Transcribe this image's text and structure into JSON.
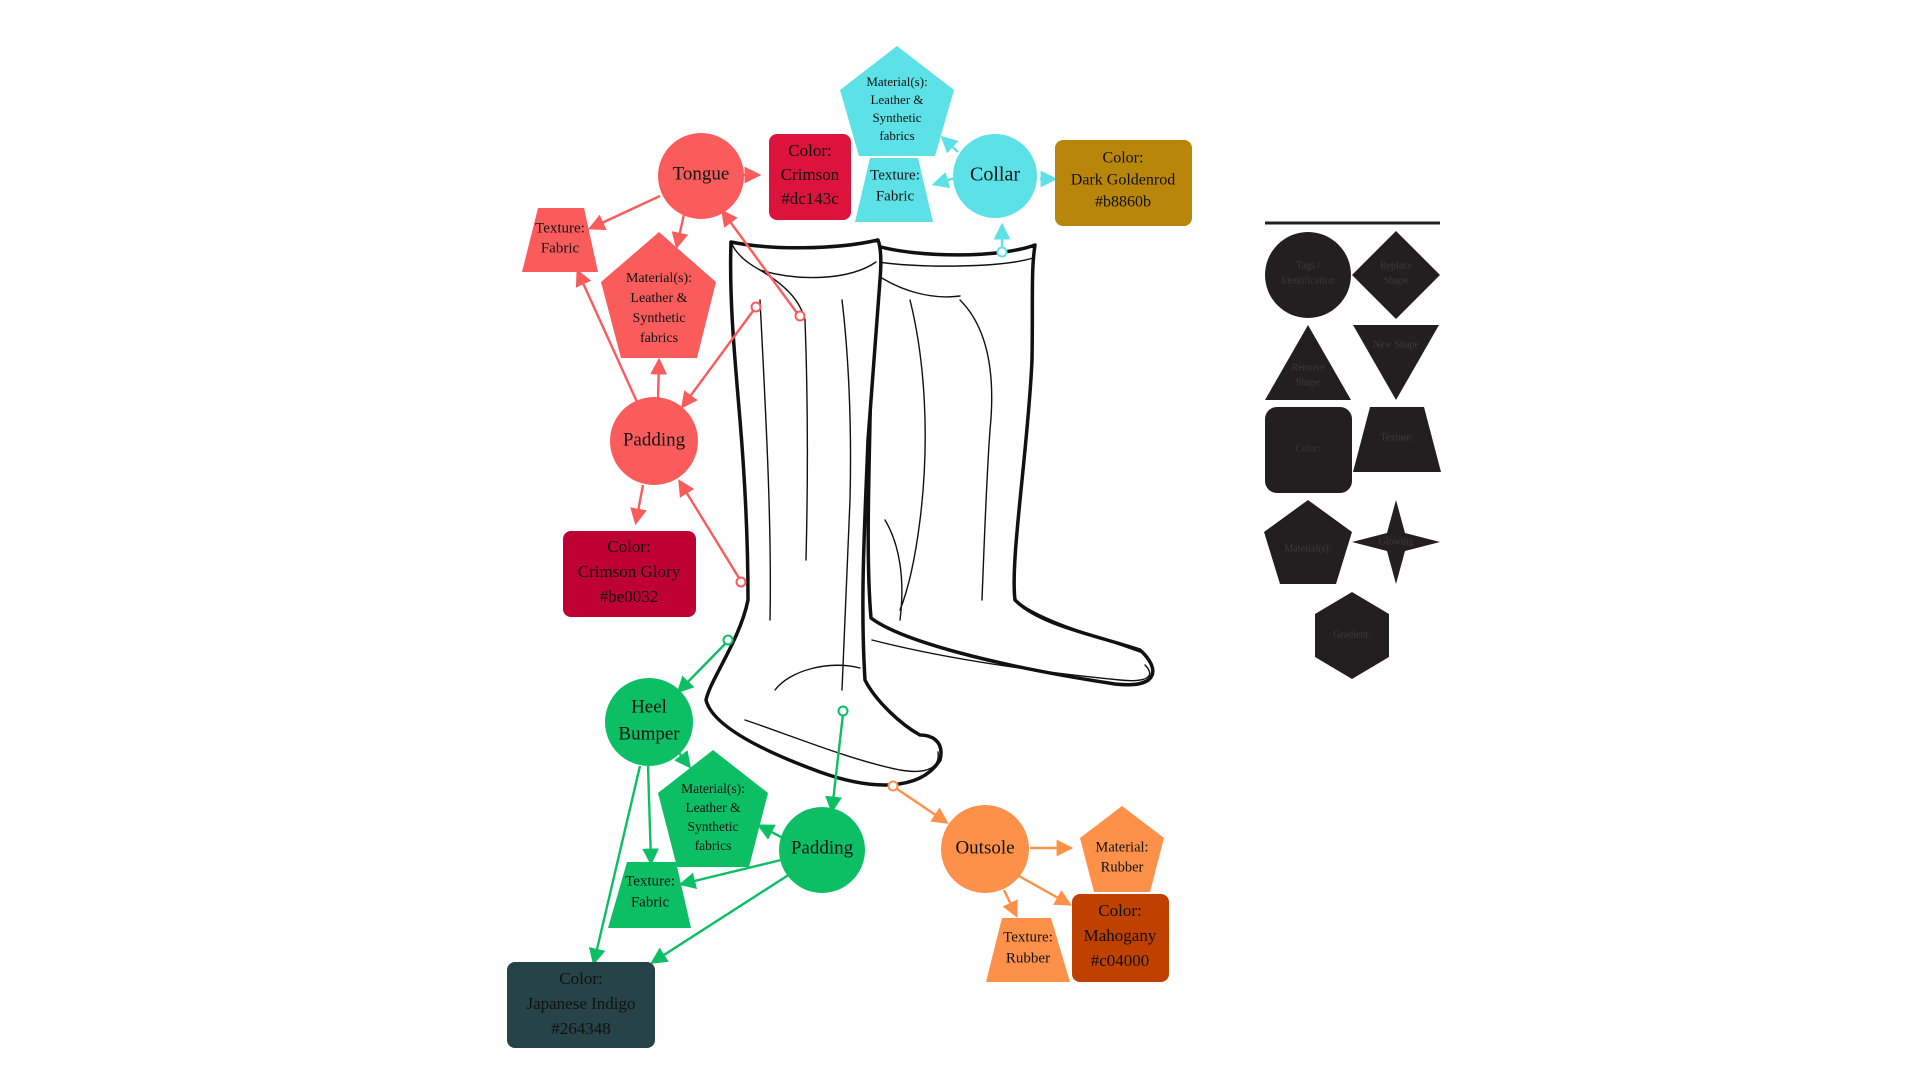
{
  "colors": {
    "tongue": "#fa5c5c",
    "collar": "#5ce1e6",
    "heel": "#0cbf65",
    "outsole": "#fd9149",
    "crimson": "#dc143c",
    "goldenrod": "#b8860b",
    "crimson_glory": "#be0032",
    "indigo": "#264348",
    "mahogany": "#c04000",
    "legend": "#231f20"
  },
  "nodes": {
    "tongue": "Tongue",
    "collar": "Collar",
    "padding_top": "Padding",
    "heel_bumper_1": "Heel",
    "heel_bumper_2": "Bumper",
    "padding_bottom": "Padding",
    "outsole": "Outsole"
  },
  "tags": {
    "tongue_texture": [
      "Texture:",
      "Fabric"
    ],
    "tongue_material": [
      "Material(s):",
      "Leather &",
      "Synthetic",
      "fabrics"
    ],
    "tongue_color": [
      "Color:",
      "Crimson",
      "#dc143c"
    ],
    "collar_material": [
      "Material(s):",
      "Leather &",
      "Synthetic",
      "fabrics"
    ],
    "collar_texture": [
      "Texture:",
      "Fabric"
    ],
    "collar_color": [
      "Color:",
      "Dark Goldenrod",
      "#b8860b"
    ],
    "padding_color": [
      "Color:",
      "Crimson Glory",
      "#be0032"
    ],
    "heel_material": [
      "Material(s):",
      "Leather &",
      "Synthetic",
      "fabrics"
    ],
    "heel_texture": [
      "Texture:",
      "Fabric"
    ],
    "heel_color": [
      "Color:",
      "Japanese Indigo",
      "#264348"
    ],
    "outsole_material": [
      "Material:",
      "Rubber"
    ],
    "outsole_texture": [
      "Texture:",
      "Rubber"
    ],
    "outsole_color": [
      "Color:",
      "Mahogany",
      "#c04000"
    ]
  },
  "legend": {
    "tags": [
      "Tags /",
      "Identification"
    ],
    "replace": [
      "Replace",
      "Shape"
    ],
    "remove": [
      "Remove",
      "Shape"
    ],
    "new": "New Shape",
    "color": "Color:",
    "texture": "Texture:",
    "material": "Material(s):",
    "glowing": "Glowing",
    "gradient": "Gradient:"
  }
}
